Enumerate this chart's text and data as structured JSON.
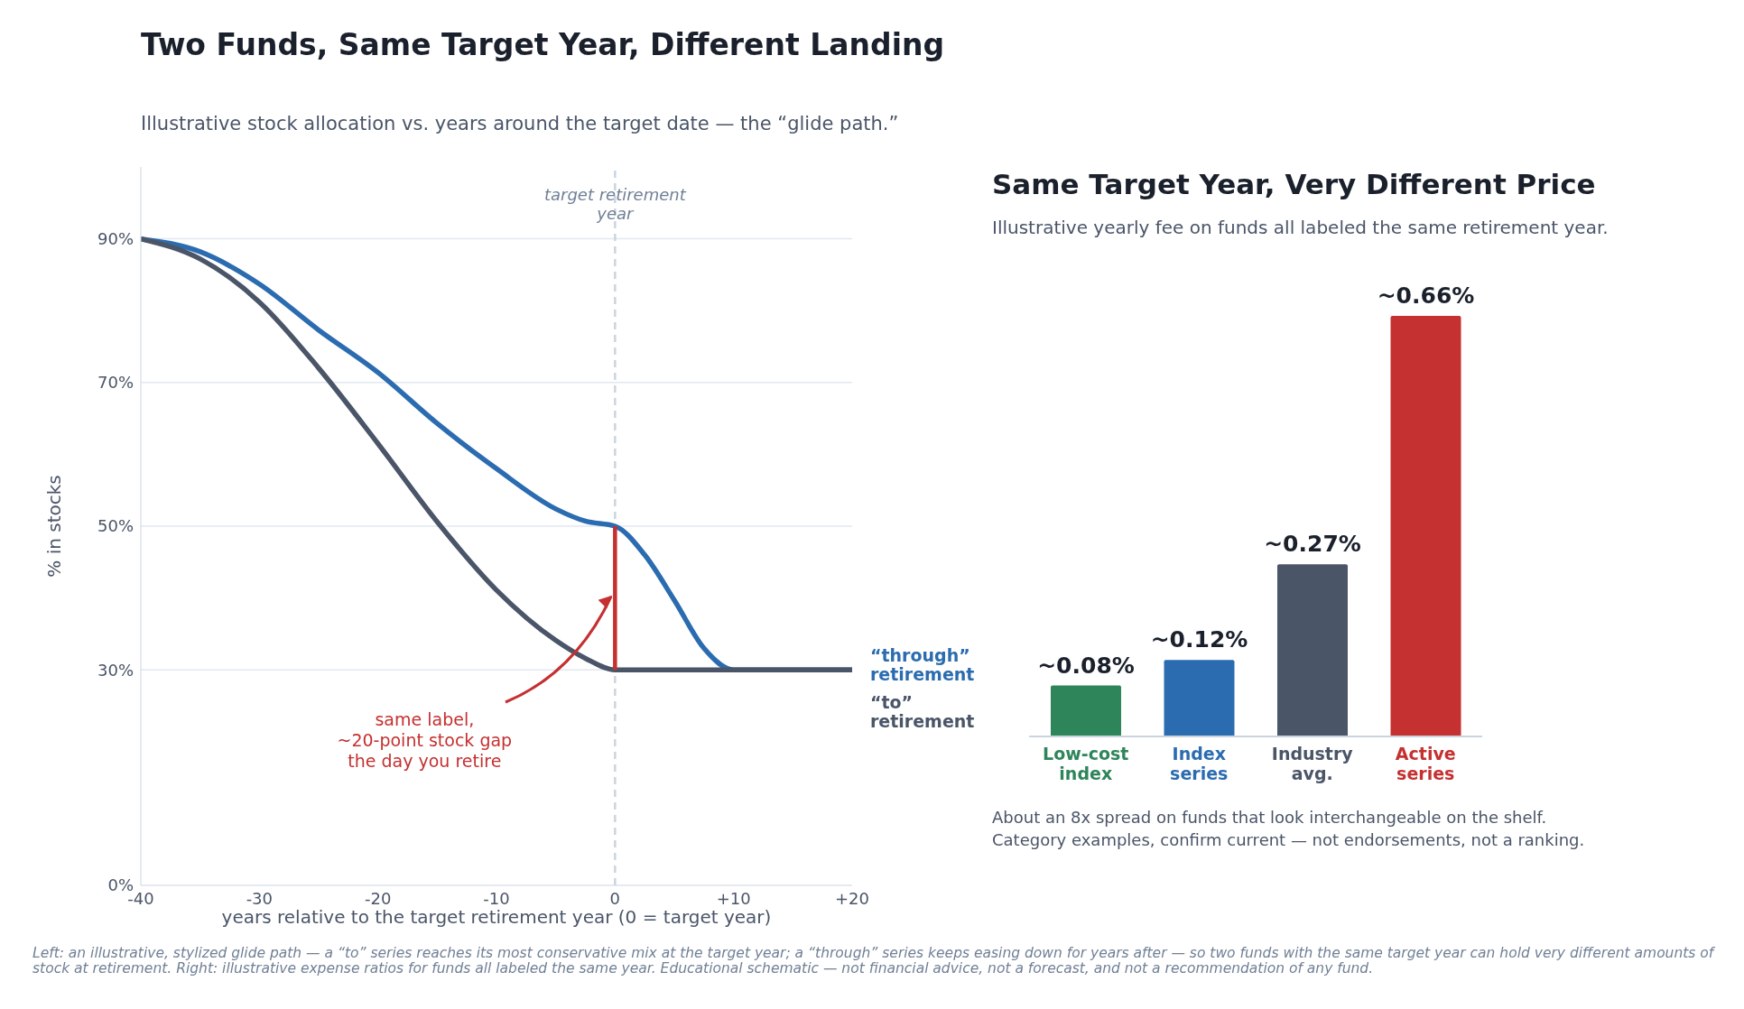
{
  "chart_data": [
    {
      "type": "line",
      "title": "Two Funds, Same Target Year, Different Landing",
      "subtitle": "Illustrative stock allocation vs. years around the target date — the “glide path.”",
      "xlabel": "years relative to the target retirement year (0 = target year)",
      "ylabel": "% in stocks",
      "series": [
        {
          "name": "“through” retirement",
          "color": "#2b6cb0",
          "x": [
            -40,
            -35,
            -30,
            -25,
            -20,
            -15,
            -10,
            -5,
            -2.5,
            0,
            2.5,
            5,
            7.5,
            10,
            15,
            20
          ],
          "values": [
            90,
            88.2,
            83.7,
            77.3,
            71.4,
            64.3,
            58,
            52.4,
            50.7,
            50,
            46,
            39.7,
            33,
            30,
            30,
            30
          ]
        },
        {
          "name": "“to” retirement",
          "color": "#4a5568",
          "x": [
            -40,
            -35,
            -30,
            -25,
            -20,
            -15,
            -10,
            -5,
            -2.5,
            0,
            5,
            10,
            15,
            20
          ],
          "values": [
            90,
            87.2,
            81.2,
            72,
            61.5,
            50.6,
            41.1,
            34.1,
            31.6,
            30,
            30,
            30,
            30,
            30
          ]
        },
        {
          "color": "#c53030",
          "x": [
            0,
            0
          ],
          "values": [
            30,
            50
          ]
        }
      ],
      "xlim": [
        -40,
        20
      ],
      "xticks": [
        -40,
        -30,
        -20,
        -10,
        0,
        {
          "value": 10,
          "label": "+10"
        },
        {
          "value": 20,
          "label": "+20"
        }
      ],
      "ylim": [
        0,
        100
      ],
      "yticks": [
        {
          "value": 0,
          "label": "0%"
        },
        {
          "value": 30,
          "label": "30%"
        },
        {
          "value": 50,
          "label": "50%"
        },
        {
          "value": 70,
          "label": "70%"
        },
        {
          "value": 90,
          "label": "90%"
        }
      ],
      "grid": "y",
      "legend": false,
      "marker": "none",
      "line_style": "solid",
      "ref_lines": [
        {
          "axis": "x",
          "value": 0,
          "label": "target retirement year",
          "color": "#cbd5e0",
          "line_style": "dashed"
        }
      ],
      "annotations": [
        {
          "text": "same label,\n~20-point stock gap\nthe day you retire",
          "x": 0,
          "y": 40
        },
        "Left: an illustrative, stylized glide path — a “to” series reaches its most conservative mix at the target year; a “through” series keeps easing down for years after — so two funds with the same target year can hold very different amounts of stock at retirement. Right: illustrative expense ratios for funds all labeled the same year. Educational schematic — not financial advice, not a forecast, and not a recommendation of any fund."
      ]
    },
    {
      "type": "bar",
      "title": "Same Target Year, Very Different Price",
      "subtitle": "Illustrative yearly fee on funds all labeled the same retirement year.",
      "categories": [
        "Low-cost index",
        "Index series",
        "Industry avg.",
        "Active series"
      ],
      "values": [
        0.08,
        0.12,
        0.27,
        0.66
      ],
      "colors": [
        "#2e8559",
        "#2b6cb0",
        "#4a5568",
        "#c53030"
      ],
      "value_labels": [
        "~0.08%",
        "~0.12%",
        "~0.27%",
        "~0.66%"
      ],
      "annotations": [
        "About an 8x spread on funds that look interchangeable on the shelf.\nCategory examples, confirm current — not endorsements, not a ranking."
      ]
    }
  ]
}
